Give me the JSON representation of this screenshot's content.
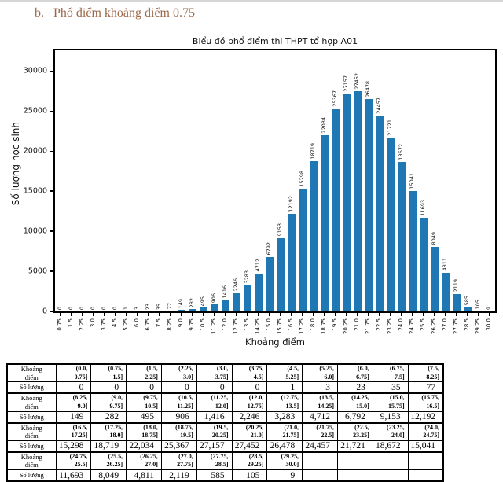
{
  "page": {
    "heading_prefix": "b.",
    "heading_text": "Phổ điểm khoảng điểm 0.75",
    "heading_color": "#9c6848"
  },
  "chart_data": {
    "type": "bar",
    "title": "Biểu đồ phổ điểm thi THPT tổ hợp A01",
    "xlabel": "Khoảng điểm",
    "ylabel": "Số lượng học sinh",
    "bar_color": "#1f77b4",
    "ylim": [
      0,
      32600
    ],
    "yticks": [
      0,
      5000,
      10000,
      15000,
      20000,
      25000,
      30000
    ],
    "legend": "none",
    "grid": "off",
    "categories": [
      "0.75",
      "1.5",
      "2.25",
      "3.0",
      "3.75",
      "4.5",
      "5.25",
      "6.0",
      "6.75",
      "7.5",
      "8.25",
      "9.0",
      "9.75",
      "10.5",
      "11.25",
      "12.0",
      "12.75",
      "13.5",
      "14.25",
      "15.0",
      "15.75",
      "16.5",
      "17.25",
      "18.0",
      "18.75",
      "19.5",
      "20.25",
      "21.0",
      "21.75",
      "22.5",
      "23.25",
      "24.0",
      "24.75",
      "25.5",
      "26.25",
      "27.0",
      "27.75",
      "28.5",
      "29.25",
      "30.0"
    ],
    "values": [
      0,
      0,
      0,
      0,
      0,
      0,
      1,
      3,
      23,
      35,
      77,
      149,
      282,
      495,
      906,
      1416,
      2246,
      3283,
      4712,
      6792,
      9153,
      12192,
      15298,
      18719,
      22034,
      25367,
      27157,
      27452,
      26478,
      24457,
      21721,
      18672,
      15041,
      11693,
      8049,
      4811,
      2119,
      585,
      105,
      9
    ]
  },
  "table": {
    "label_interval": "Khoảng\nđiểm",
    "label_count": "Số lượng",
    "columns_per_row": 11,
    "groups": [
      {
        "intervals": [
          "(0.0,\n0.75]",
          "(0.75,\n1.5]",
          "(1.5,\n2.25]",
          "(2.25,\n3.0]",
          "(3.0,\n3.75]",
          "(3.75,\n4.5]",
          "(4.5,\n5.25]",
          "(5.25,\n6.0]",
          "(6.0,\n6.75]",
          "(6.75,\n7.5]",
          "(7.5,\n8.25]"
        ],
        "counts": [
          "0",
          "0",
          "0",
          "0",
          "0",
          "0",
          "1",
          "3",
          "23",
          "35",
          "77"
        ]
      },
      {
        "intervals": [
          "(8.25,\n9.0]",
          "(9.0,\n9.75]",
          "(9.75,\n10.5]",
          "(10.5,\n11.25]",
          "(11.25,\n12.0]",
          "(12.0,\n12.75]",
          "(12.75,\n13.5]",
          "(13.5,\n14.25]",
          "(14.25,\n15.0]",
          "(15.0,\n15.75]",
          "(15.75,\n16.5]"
        ],
        "counts": [
          "149",
          "282",
          "495",
          "906",
          "1,416",
          "2,246",
          "3,283",
          "4,712",
          "6,792",
          "9,153",
          "12,192"
        ]
      },
      {
        "intervals": [
          "(16.5,\n17.25]",
          "(17.25,\n18.0]",
          "(18.0,\n18.75]",
          "(18.75,\n19.5]",
          "(19.5,\n20.25]",
          "(20.25,\n21.0]",
          "(21.0,\n21.75]",
          "(21.75,\n22.5]",
          "(22.5,\n23.25]",
          "(23.25,\n24.0]",
          "(24.0,\n24.75]"
        ],
        "counts": [
          "15,298",
          "18,719",
          "22,034",
          "25,367",
          "27,157",
          "27,452",
          "26,478",
          "24,457",
          "21,721",
          "18,672",
          "15,041"
        ]
      },
      {
        "intervals": [
          "(24.75,\n25.5]",
          "(25.5,\n26.25]",
          "(26.25,\n27.0]",
          "(27.0,\n27.75]",
          "(27.75,\n28.5]",
          "(28.5,\n29.25]",
          "(29.25,\n30.0]",
          "",
          "",
          "",
          ""
        ],
        "counts": [
          "11,693",
          "8,049",
          "4,811",
          "2,119",
          "585",
          "105",
          "9",
          "",
          "",
          "",
          ""
        ]
      }
    ]
  }
}
